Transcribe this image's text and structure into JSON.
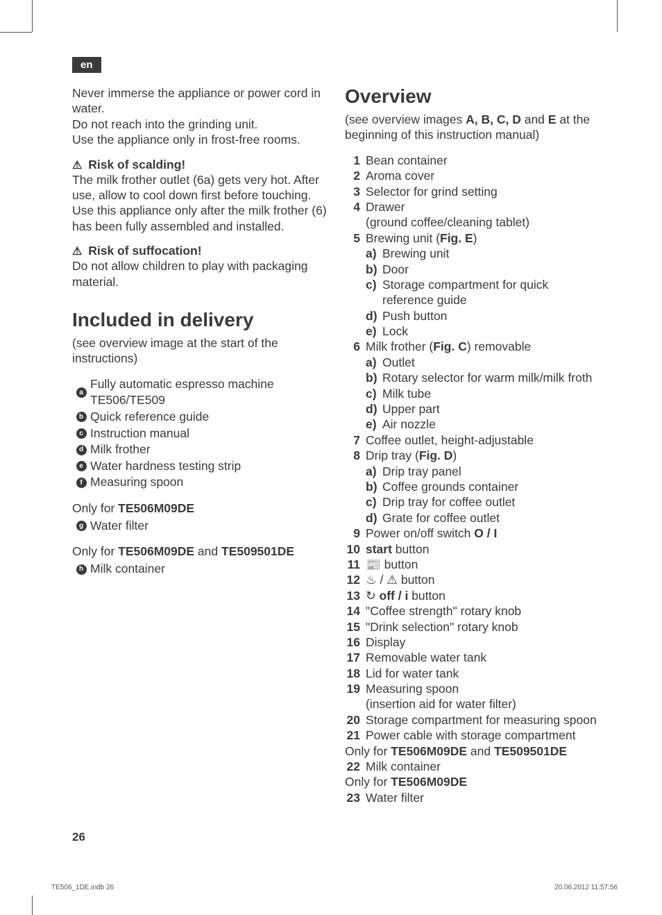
{
  "lang_badge": "en",
  "left": {
    "intro_p1": "Never immerse the appliance or power cord in water.",
    "intro_p2": "Do not reach into the grinding unit.",
    "intro_p3": "Use the appliance only in frost-free rooms.",
    "warn1_title": "Risk of scalding!",
    "warn1_body1": "The milk frother outlet (6a) gets very hot. After use, allow to cool down first before touching.",
    "warn1_body2": "Use this appliance only after the milk frother (6) has been fully assembled and installed.",
    "warn2_title": "Risk of suffocation!",
    "warn2_body": "Do not allow children to play with packaging material.",
    "section_title": "Included in delivery",
    "section_sub": "(see overview image at the start of the instructions)",
    "delivery_items": [
      {
        "letter": "a",
        "text": "Fully automatic espresso machine TE506/TE509"
      },
      {
        "letter": "b",
        "text": "Quick reference guide"
      },
      {
        "letter": "c",
        "text": "Instruction manual"
      },
      {
        "letter": "d",
        "text": "Milk frother"
      },
      {
        "letter": "e",
        "text": "Water hardness testing strip"
      },
      {
        "letter": "f",
        "text": "Measuring spoon"
      }
    ],
    "only1_prefix": "Only for ",
    "only1_model": "TE506M09DE",
    "only1_items": [
      {
        "letter": "g",
        "text": "Water filter"
      }
    ],
    "only2_prefix": "Only for ",
    "only2_model1": "TE506M09DE",
    "only2_mid": " and ",
    "only2_model2": "TE509501DE",
    "only2_items": [
      {
        "letter": "h",
        "text": "Milk container"
      }
    ]
  },
  "right": {
    "title": "Overview",
    "sub_a": "(see overview images ",
    "sub_b": "A, B, C, D",
    "sub_c": " and ",
    "sub_d": "E",
    "sub_e": " at the beginning of this instruction manual)",
    "items": [
      {
        "n": "1",
        "text": "Bean container"
      },
      {
        "n": "2",
        "text": "Aroma cover"
      },
      {
        "n": "3",
        "text": "Selector for grind setting"
      },
      {
        "n": "4",
        "text": "Drawer",
        "extra": "(ground coffee/cleaning tablet)"
      },
      {
        "n": "5",
        "pre": "Brewing unit (",
        "bold": "Fig. E",
        "post": ")",
        "sub": [
          {
            "l": "a)",
            "t": "Brewing unit"
          },
          {
            "l": "b)",
            "t": "Door"
          },
          {
            "l": "c)",
            "t": "Storage compartment for quick reference guide"
          },
          {
            "l": "d)",
            "t": "Push button"
          },
          {
            "l": "e)",
            "t": "Lock"
          }
        ]
      },
      {
        "n": "6",
        "pre": "Milk frother (",
        "bold": "Fig. C",
        "post": ") removable",
        "sub": [
          {
            "l": "a)",
            "t": "Outlet"
          },
          {
            "l": "b)",
            "t": "Rotary selector for warm milk/milk froth"
          },
          {
            "l": "c)",
            "t": "Milk tube"
          },
          {
            "l": "d)",
            "t": "Upper part"
          },
          {
            "l": "e)",
            "t": "Air nozzle"
          }
        ]
      },
      {
        "n": "7",
        "text": "Coffee outlet, height-adjustable"
      },
      {
        "n": "8",
        "pre": "Drip tray (",
        "bold": "Fig. D",
        "post": ")",
        "sub": [
          {
            "l": "a)",
            "t": "Drip tray panel"
          },
          {
            "l": "b)",
            "t": "Coffee grounds container"
          },
          {
            "l": "c)",
            "t": "Drip tray for coffee outlet"
          },
          {
            "l": "d)",
            "t": "Grate for coffee outlet"
          }
        ]
      },
      {
        "n": "9",
        "pre": "Power on/off switch ",
        "bold": "O / I",
        "post": ""
      },
      {
        "n": "10",
        "bold": "start",
        "post": " button"
      },
      {
        "n": "11",
        "icon": "📰",
        "post": " button"
      },
      {
        "n": "12",
        "icon": "♨ / ⚠",
        "post": " button"
      },
      {
        "n": "13",
        "icon": "↻ ",
        "bold": "off / i",
        "post": " button"
      },
      {
        "n": "14",
        "text": "\"Coffee strength\" rotary knob"
      },
      {
        "n": "15",
        "text": "\"Drink selection\" rotary knob"
      },
      {
        "n": "16",
        "text": "Display"
      },
      {
        "n": "17",
        "text": "Removable water tank"
      },
      {
        "n": "18",
        "text": "Lid for water tank"
      },
      {
        "n": "19",
        "text": "Measuring spoon",
        "extra": "(insertion aid for water filter)"
      },
      {
        "n": "20",
        "text": "Storage compartment for measuring spoon"
      },
      {
        "n": "21",
        "text": "Power cable with storage compartment"
      }
    ],
    "only1_pre": "Only for ",
    "only1_m1": "TE506M09DE",
    "only1_mid": " and ",
    "only1_m2": "TE509501DE",
    "it22_n": "22",
    "it22_t": "Milk container",
    "only2_pre": "Only for ",
    "only2_m": "TE506M09DE",
    "it23_n": "23",
    "it23_t": "Water filter"
  },
  "page_number": "26",
  "footer_left": "TE506_1DE.indb   26",
  "footer_right": "20.06.2012   11:57:56"
}
